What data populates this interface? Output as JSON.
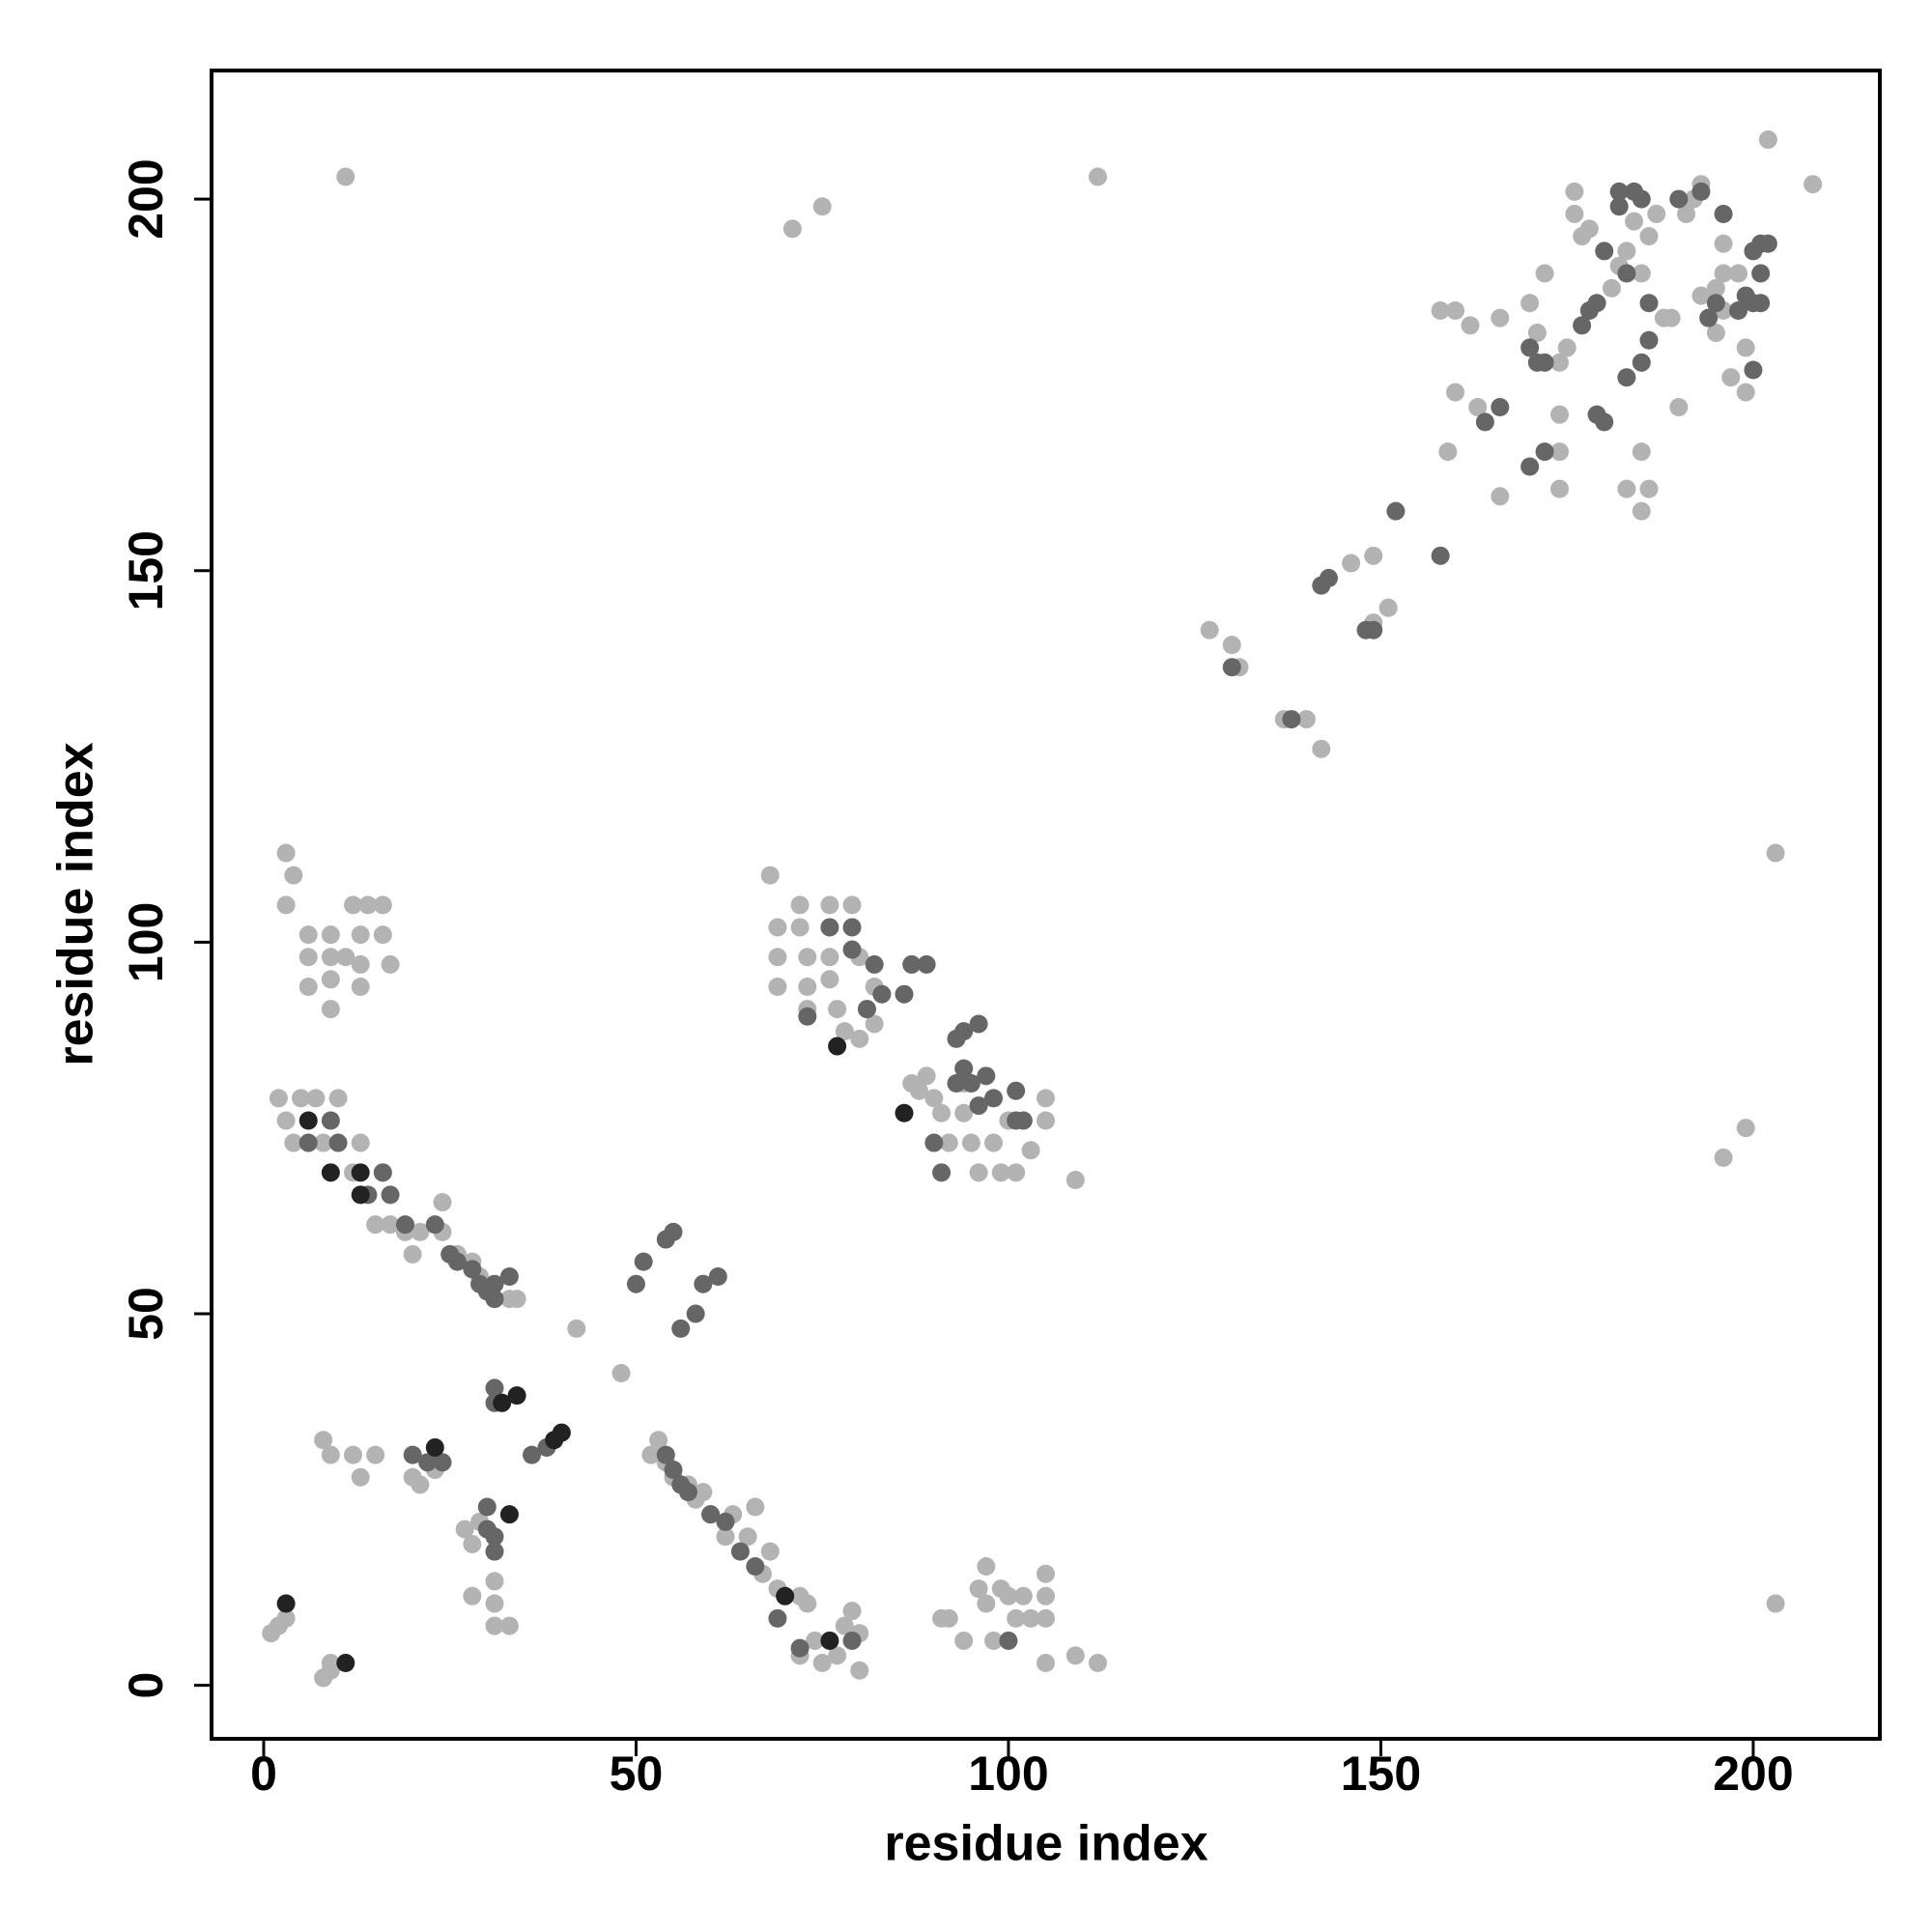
{
  "chart_data": {
    "type": "scatter",
    "x_label": "residue index",
    "y_label": "residue index",
    "xlim": [
      -7,
      217
    ],
    "ylim": [
      -7.2,
      217.3
    ],
    "xticks": [
      0,
      50,
      100,
      150,
      200
    ],
    "yticks": [
      0,
      50,
      100,
      150,
      200
    ],
    "grid": false,
    "series": [
      {
        "color": "#b3b3b3",
        "x": [
          11,
          71,
          75,
          112,
          208,
          202,
          203,
          199,
          196,
          203,
          1,
          2,
          3,
          8,
          9,
          9,
          3,
          4,
          3,
          6,
          6,
          6,
          9,
          9,
          9,
          9,
          11,
          12,
          13,
          13,
          13,
          14,
          16,
          16,
          17,
          2,
          3,
          4,
          5,
          7,
          10,
          8,
          13,
          12,
          16,
          15,
          17,
          19,
          21,
          20,
          24,
          24,
          26,
          28,
          29,
          31,
          33,
          34,
          68,
          69,
          69,
          69,
          72,
          72,
          73,
          73,
          73,
          76,
          76,
          76,
          77,
          79,
          80,
          82,
          81,
          80,
          82,
          78,
          87,
          87,
          88,
          89,
          90,
          91,
          92,
          94,
          94,
          95,
          96,
          98,
          99,
          100,
          101,
          103,
          105,
          105,
          109,
          42,
          48,
          8,
          9,
          12,
          13,
          15,
          20,
          21,
          23,
          27,
          28,
          29,
          28,
          31,
          31,
          31,
          33,
          52,
          53,
          54,
          55,
          57,
          58,
          59,
          60,
          62,
          63,
          65,
          66,
          67,
          68,
          69,
          72,
          72,
          73,
          74,
          75,
          77,
          78,
          80,
          80,
          79,
          91,
          92,
          94,
          96,
          97,
          97,
          98,
          99,
          100,
          101,
          102,
          103,
          105,
          105,
          105,
          105,
          109,
          112,
          127,
          130,
          131,
          137,
          140,
          142,
          146,
          149,
          149,
          151,
          159,
          158,
          160,
          162,
          160,
          163,
          166,
          166,
          170,
          171,
          172,
          174,
          175,
          174,
          174,
          174,
          176,
          176,
          177,
          178,
          181,
          182,
          183,
          184,
          186,
          187,
          185,
          183,
          185,
          186,
          185,
          188,
          189,
          190,
          191,
          192,
          193,
          196,
          193,
          195,
          196,
          195,
          197,
          199,
          198,
          196,
          199
        ],
        "y": [
          203,
          196,
          199,
          203,
          202,
          208,
          112,
          75,
          71,
          11,
          7,
          8,
          9,
          1,
          2,
          3,
          112,
          109,
          105,
          101,
          98,
          94,
          101,
          98,
          95,
          91,
          98,
          105,
          101,
          97,
          94,
          105,
          105,
          101,
          97,
          79,
          76,
          73,
          79,
          79,
          79,
          73,
          73,
          69,
          69,
          62,
          62,
          61,
          61,
          58,
          65,
          61,
          58,
          57,
          55,
          52,
          52,
          52,
          109,
          102,
          98,
          94,
          105,
          102,
          98,
          94,
          91,
          105,
          98,
          95,
          91,
          105,
          98,
          94,
          91,
          87,
          89,
          88,
          97,
          81,
          80,
          82,
          79,
          77,
          73,
          81,
          77,
          73,
          69,
          73,
          69,
          76,
          69,
          72,
          79,
          76,
          68,
          48,
          42,
          33,
          31,
          31,
          28,
          31,
          28,
          27,
          29,
          21,
          19,
          22,
          12,
          14,
          11,
          8,
          8,
          31,
          33,
          30,
          28,
          27,
          25,
          26,
          23,
          20,
          23,
          20,
          24,
          15,
          18,
          13,
          12,
          4,
          11,
          6,
          3,
          4,
          8,
          7,
          2,
          10,
          9,
          9,
          6,
          13,
          16,
          11,
          6,
          13,
          12,
          9,
          12,
          9,
          15,
          12,
          9,
          3,
          4,
          3,
          142,
          140,
          137,
          130,
          130,
          126,
          151,
          152,
          143,
          145,
          166,
          185,
          185,
          183,
          174,
          172,
          160,
          184,
          186,
          182,
          190,
          178,
          180,
          166,
          161,
          171,
          198,
          201,
          195,
          196,
          188,
          191,
          193,
          197,
          195,
          198,
          166,
          161,
          158,
          161,
          190,
          184,
          184,
          172,
          198,
          200,
          202,
          185,
          187,
          188,
          190,
          182,
          176,
          174,
          190,
          194,
          180
        ]
      },
      {
        "color": "#666666",
        "x": [
          6,
          9,
          10,
          14,
          16,
          17,
          19,
          23,
          25,
          26,
          28,
          29,
          30,
          31,
          31,
          33,
          31,
          31,
          50,
          51,
          54,
          55,
          56,
          58,
          59,
          61,
          54,
          55,
          56,
          57,
          60,
          62,
          64,
          66,
          69,
          72,
          79,
          100,
          36,
          38,
          20,
          22,
          24,
          30,
          31,
          31,
          30,
          73,
          76,
          79,
          79,
          82,
          83,
          86,
          87,
          89,
          81,
          93,
          94,
          96,
          94,
          95,
          96,
          97,
          98,
          101,
          101,
          102,
          91,
          90,
          93,
          130,
          138,
          142,
          143,
          148,
          149,
          152,
          158,
          164,
          166,
          170,
          172,
          170,
          171,
          172,
          177,
          178,
          179,
          180,
          182,
          182,
          184,
          185,
          186,
          183,
          179,
          180,
          183,
          185,
          186,
          190,
          193,
          194,
          195,
          198,
          199,
          200,
          201,
          202,
          201,
          200,
          201,
          200,
          196
        ],
        "y": [
          73,
          76,
          73,
          66,
          69,
          66,
          62,
          62,
          58,
          57,
          56,
          54,
          53,
          52,
          54,
          55,
          38,
          40,
          54,
          57,
          60,
          61,
          48,
          50,
          54,
          55,
          31,
          29,
          27,
          26,
          23,
          22,
          18,
          16,
          9,
          5,
          6,
          6,
          31,
          32,
          31,
          30,
          30,
          24,
          20,
          18,
          21,
          90,
          102,
          102,
          99,
          97,
          93,
          93,
          97,
          97,
          91,
          87,
          88,
          89,
          83,
          81,
          78,
          82,
          79,
          80,
          76,
          76,
          69,
          73,
          81,
          137,
          130,
          148,
          149,
          142,
          142,
          158,
          152,
          170,
          172,
          164,
          166,
          180,
          178,
          178,
          183,
          185,
          186,
          193,
          201,
          199,
          201,
          200,
          186,
          190,
          171,
          170,
          176,
          178,
          181,
          200,
          201,
          184,
          186,
          185,
          187,
          193,
          194,
          194,
          190,
          186,
          186,
          177,
          198
        ]
      },
      {
        "color": "#222222",
        "x": [
          3,
          11,
          6,
          9,
          13,
          13,
          32,
          34,
          33,
          23,
          39,
          40,
          77,
          86,
          70,
          76
        ],
        "y": [
          11,
          3,
          76,
          69,
          69,
          66,
          38,
          39,
          23,
          32,
          33,
          34,
          86,
          77,
          12,
          6
        ]
      }
    ]
  }
}
